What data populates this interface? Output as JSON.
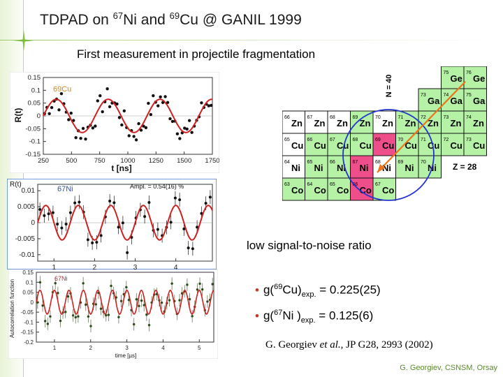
{
  "slide": {
    "title_prefix": "TDPAD on ",
    "title_iso1_mass": "67",
    "title_iso1_elem": "Ni and ",
    "title_iso2_mass": "69",
    "title_iso2_elem": "Cu @ GANIL 1999",
    "subtitle": "First measurement in projectile fragmentation",
    "noise_text": "low signal-to-noise ratio",
    "bullet1": {
      "pre": "g(",
      "mass": "69",
      "elem": "Cu)",
      "sub": "exp.",
      "val": " = 0.225(25)"
    },
    "bullet2": {
      "pre": "g(",
      "mass": "67",
      "elem": "Ni )",
      "sub": "exp.",
      "val": " = 0.125(6)"
    },
    "reference": {
      "author": "G. Georgiev ",
      "etal": "et al.",
      "rest": ", JP G28, 2993 (2002)"
    },
    "footer": "G. Georgiev, CSNSM, Orsay"
  },
  "chart_data": [
    {
      "type": "scatter",
      "title": "",
      "label": "69Cu",
      "xlabel": "t [ns]",
      "ylabel": "R(t)",
      "x_ticks": [
        "250",
        "500",
        "750",
        "1000",
        "1250",
        "1500",
        "1750"
      ],
      "y_ticks": [
        "0.15",
        "0.1",
        "0.05",
        "0",
        "-0.05",
        "-0.1",
        "-0.15"
      ],
      "xlim": [
        250,
        1750
      ],
      "ylim": [
        -0.15,
        0.15
      ],
      "fit": {
        "amplitude": 0.065,
        "period_ns": 460,
        "phase_ns": 250,
        "color": "#cc2222"
      }
    },
    {
      "type": "scatter",
      "title": "",
      "label": "67Ni",
      "annotation": "Ampl. = 0.54(16) %",
      "ylabel": "R(t)",
      "x_ticks": [
        "1",
        "2",
        "3",
        "4"
      ],
      "y_ticks": [
        "0.01",
        "0.005",
        "0",
        "-0.005",
        "-0.01"
      ],
      "xlim": [
        0.6,
        4.9
      ],
      "ylim": [
        -0.012,
        0.012
      ],
      "fit": {
        "amplitude": 0.0054,
        "period": 0.8,
        "color": "#cc2222"
      }
    },
    {
      "type": "scatter",
      "title": "",
      "label": "67Ni",
      "xlabel": "time [µs]",
      "ylabel": "Autocorrelation function",
      "x_ticks": [
        "1",
        "2",
        "3",
        "4",
        "5"
      ],
      "y_ticks": [
        "0.15",
        "0.1",
        "0.05",
        "0",
        "-0.05",
        "-0.1",
        "-0.15",
        "-0.2"
      ],
      "xlim": [
        0.5,
        5.4
      ],
      "ylim": [
        -0.2,
        0.15
      ],
      "fit": {
        "amplitude": 0.06,
        "period": 0.4,
        "color": "#cc2222"
      }
    }
  ],
  "nuclide_chart": {
    "n40_label": "N = 40",
    "z28_label": "Z = 28",
    "rows": [
      {
        "cells": [
          {
            "m": "75",
            "e": "Ge",
            "c": "#b6f2a6"
          },
          {
            "m": "76",
            "e": "Ge",
            "c": "#b6f2a6"
          }
        ]
      },
      {
        "cells": [
          {
            "m": "73",
            "e": "Ga",
            "c": "#b6f2a6"
          },
          {
            "m": "74",
            "e": "Ga",
            "c": "#b6f2a6"
          },
          {
            "m": "75",
            "e": "Ga",
            "c": "#b6f2a6"
          }
        ]
      },
      {
        "cells": [
          {
            "m": "66",
            "e": "Zn",
            "c": "#ffffff"
          },
          {
            "m": "67",
            "e": "Zn",
            "c": "#ffffff"
          },
          {
            "m": "68",
            "e": "Zn",
            "c": "#ffffff"
          },
          {
            "m": "69",
            "e": "Zn",
            "c": "#b6f2a6"
          },
          {
            "m": "70",
            "e": "Zn",
            "c": "#ffffff"
          },
          {
            "m": "71",
            "e": "Zn",
            "c": "#b6f2a6"
          },
          {
            "m": "72",
            "e": "Zn",
            "c": "#b6f2a6"
          },
          {
            "m": "73",
            "e": "Zn",
            "c": "#b6f2a6"
          },
          {
            "m": "74",
            "e": "Zn",
            "c": "#b6f2a6"
          }
        ]
      },
      {
        "cells": [
          {
            "m": "65",
            "e": "Cu",
            "c": "#ffffff"
          },
          {
            "m": "66",
            "e": "Cu",
            "c": "#b6f2a6"
          },
          {
            "m": "67",
            "e": "Cu",
            "c": "#b6f2a6"
          },
          {
            "m": "68",
            "e": "Cu",
            "c": "#b6f2a6"
          },
          {
            "m": "69",
            "e": "Cu",
            "c": "#ee4f8a"
          },
          {
            "m": "70",
            "e": "Cu",
            "c": "#b6f2a6"
          },
          {
            "m": "71",
            "e": "Cu",
            "c": "#b6f2a6"
          },
          {
            "m": "72",
            "e": "Cu",
            "c": "#b6f2a6"
          },
          {
            "m": "73",
            "e": "Cu",
            "c": "#b6f2a6"
          }
        ]
      },
      {
        "cells": [
          {
            "m": "64",
            "e": "Ni",
            "c": "#ffffff"
          },
          {
            "m": "65",
            "e": "Ni",
            "c": "#b6f2a6"
          },
          {
            "m": "66",
            "e": "Ni",
            "c": "#b6f2a6"
          },
          {
            "m": "67",
            "e": "Ni",
            "c": "#ee4f8a"
          },
          {
            "m": "68",
            "e": "Ni",
            "c": "#ffffff"
          },
          {
            "m": "69",
            "e": "Ni",
            "c": "#b6f2a6"
          },
          {
            "m": "70",
            "e": "Ni",
            "c": "#b6f2a6"
          }
        ]
      },
      {
        "cells": [
          {
            "m": "63",
            "e": "Co",
            "c": "#b6f2a6"
          },
          {
            "m": "64",
            "e": "Co",
            "c": "#b6f2a6"
          },
          {
            "m": "65",
            "e": "Co",
            "c": "#b6f2a6"
          },
          {
            "m": "66",
            "e": "Co",
            "c": "#ee4f8a"
          },
          {
            "m": "67",
            "e": "Co",
            "c": "#b6f2a6"
          }
        ]
      }
    ]
  },
  "colors": {
    "fit_red": "#cc2222",
    "accent_green": "#5a8a2e",
    "arrow_orange": "#e8751a",
    "circle_blue": "#2233cc"
  }
}
